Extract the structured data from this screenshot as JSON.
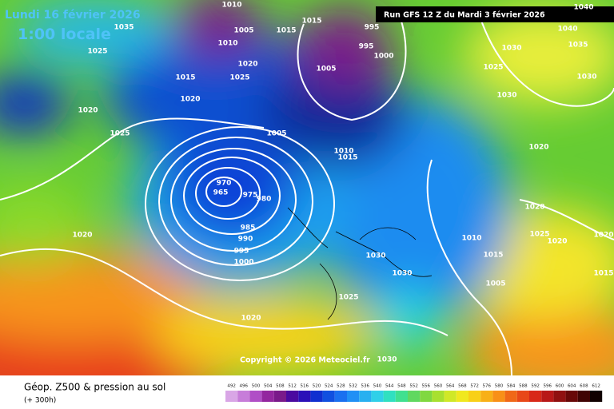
{
  "header": {
    "date": "Lundi 16 février 2026",
    "local_time": "1:00 locale",
    "run": "Run GFS 12 Z du Mardi 3 février 2026"
  },
  "copyright": "Copyright © 2026 Meteociel.fr",
  "footer": {
    "title": "Géop. Z500 & pression au sol",
    "lead": "(+ 300h)"
  },
  "scale": [
    492,
    496,
    500,
    504,
    508,
    512,
    516,
    520,
    524,
    528,
    532,
    536,
    540,
    544,
    548,
    552,
    556,
    560,
    564,
    568,
    572,
    576,
    580,
    584,
    588,
    592,
    596,
    600,
    604,
    608,
    612
  ],
  "isobar_labels": [
    1010,
    1035,
    1025,
    1005,
    1015,
    1015,
    1010,
    1020,
    1025,
    1015,
    1020,
    1020,
    1025,
    1005,
    995,
    995,
    1000,
    1005,
    1010,
    1015,
    970,
    965,
    975,
    980,
    985,
    990,
    995,
    1000,
    1020,
    1030,
    1030,
    1025,
    1020,
    1030,
    1010,
    1015,
    1005,
    1040,
    1040,
    1035,
    1030,
    1025,
    1030,
    1030,
    1020,
    1020,
    1025,
    1020,
    1020,
    1015
  ]
}
